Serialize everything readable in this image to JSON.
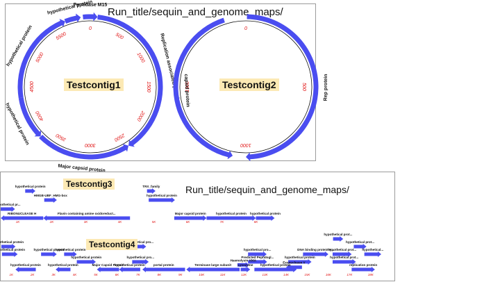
{
  "circular_panel": {
    "folder": "Run_title/sequin_and_genome_maps/",
    "gene_color": "#4a4df0",
    "tick_color": "#e01010",
    "contigs": [
      {
        "name": "Testcontig1",
        "length": 6000,
        "ticks": [
          "0",
          "500",
          "1000",
          "1500",
          "2000",
          "2500",
          "3000",
          "3500",
          "4000",
          "4500",
          "5000",
          "5500"
        ],
        "genes": [
          {
            "label": "Replication associated protein",
            "start": 100,
            "end": 2450,
            "strand": 1
          },
          {
            "label": "Major capsid protein",
            "start": 2450,
            "end": 3750,
            "strand": -1
          },
          {
            "label": "hypothetical protein",
            "start": 3750,
            "end": 4350,
            "strand": -1
          },
          {
            "label": "hypothetical protein",
            "start": 4350,
            "end": 5650,
            "strand": 1
          },
          {
            "label": "hypothetical protein",
            "start": 5650,
            "end": 5870,
            "strand": 1
          },
          {
            "label": "Peptidase M15",
            "start": 5900,
            "end": 6100,
            "strand": 1
          }
        ]
      },
      {
        "name": "Testcontig2",
        "length": 2000,
        "ticks": [
          "0",
          "500",
          "1000",
          "1500"
        ],
        "genes": [
          {
            "label": "Rep protein",
            "start": 5,
            "end": 1000,
            "strand": 1
          },
          {
            "label": "capsid protein",
            "start": 1900,
            "end": 1060,
            "strand": -1
          }
        ]
      }
    ]
  },
  "linear_panel": {
    "folder": "Run_title/sequin_and_genome_maps/",
    "contigs": [
      {
        "name": "Testcontig3",
        "length": 8000,
        "tick_labels": [
          "1K",
          "2K",
          "3K",
          "4K",
          "5K",
          "6K",
          "7K",
          "8K"
        ],
        "genes": [
          {
            "label": "hypothetical protein",
            "start": 720,
            "end": 1020,
            "strand": 1,
            "lane": 4
          },
          {
            "label": "HMGB-UBF_HMG-box",
            "start": 1280,
            "end": 1650,
            "strand": 1,
            "lane": 3
          },
          {
            "label": "TRX_family",
            "start": 4300,
            "end": 4550,
            "strand": 1,
            "lane": 4
          },
          {
            "label": "hypothetical protein",
            "start": 4350,
            "end": 5120,
            "strand": 1,
            "lane": 3
          },
          {
            "label": "hypothetical pr...",
            "start": 0,
            "end": 420,
            "strand": 1,
            "lane": 2
          },
          {
            "label": "RIBONUCLEASE H",
            "start": 1,
            "end": 1250,
            "strand": -1,
            "lane": 1
          },
          {
            "label": "Flavin containing amine oxidoreduct...",
            "start": 1250,
            "end": 3800,
            "strand": -1,
            "lane": 1
          },
          {
            "label": "Major capsid protein",
            "start": 5100,
            "end": 6050,
            "strand": 1,
            "lane": 1
          },
          {
            "label": "hypothetical protein",
            "start": 6050,
            "end": 7500,
            "strand": 1,
            "lane": 1
          },
          {
            "label": "hypothetical protein",
            "start": 7500,
            "end": 8050,
            "strand": 1,
            "lane": 1
          }
        ]
      },
      {
        "name": "Testcontig4",
        "length": 18000,
        "tick_labels": [
          "1K",
          "2K",
          "3K",
          "4K",
          "5K",
          "6K",
          "7K",
          "8K",
          "9K",
          "10K",
          "11K",
          "12K",
          "13K",
          "14K",
          "15K",
          "16K",
          "17K",
          "18K"
        ],
        "genes": [
          {
            "label": "hypothetical prot...",
            "start": 15720,
            "end": 16200,
            "strand": 1,
            "lane": 5
          },
          {
            "label": "hypothetical protein",
            "start": 30,
            "end": 700,
            "strand": 1,
            "lane": 4
          },
          {
            "label": "hypothetical pro...",
            "start": 6280,
            "end": 6880,
            "strand": 1,
            "lane": 4
          },
          {
            "label": "hypothetical prot...",
            "start": 16700,
            "end": 17300,
            "strand": 1,
            "lane": 4
          },
          {
            "label": "hypothetical protein",
            "start": 60,
            "end": 800,
            "strand": 1,
            "lane": 3
          },
          {
            "label": "hypothetical protein",
            "start": 1910,
            "end": 2650,
            "strand": 1,
            "lane": 3
          },
          {
            "label": "hypothetical protein",
            "start": 3000,
            "end": 3600,
            "strand": 1,
            "lane": 3
          },
          {
            "label": "hypothetical pro...",
            "start": 11700,
            "end": 12580,
            "strand": 1,
            "lane": 3
          },
          {
            "label": "DNA binding protein H...",
            "start": 14300,
            "end": 15500,
            "strand": 1,
            "lane": 3
          },
          {
            "label": "hypothetical prot...",
            "start": 15700,
            "end": 16600,
            "strand": 1,
            "lane": 3
          },
          {
            "label": "hypothetical...",
            "start": 17200,
            "end": 18000,
            "strand": 1,
            "lane": 3
          },
          {
            "label": "hypothetical protein",
            "start": 3600,
            "end": 4500,
            "strand": 1,
            "lane": 2
          },
          {
            "label": "hypothetical pro...",
            "start": 6220,
            "end": 7000,
            "strand": 1,
            "lane": 2
          },
          {
            "label": "Predicted Peptidogl...",
            "start": 11700,
            "end": 12600,
            "strand": 1,
            "lane": 2
          },
          {
            "label": "hypothetical protein",
            "start": 13600,
            "end": 14700,
            "strand": 1,
            "lane": 2
          },
          {
            "label": "hypothetical prot...",
            "start": 15700,
            "end": 16800,
            "strand": 1,
            "lane": 2
          },
          {
            "label": "Haemolysin XhlA",
            "start": 11200,
            "end": 11750,
            "strand": 1,
            "lane": 1.6
          },
          {
            "label": "Exonuclease V",
            "start": 13500,
            "end": 14250,
            "strand": -1,
            "lane": 1.3
          },
          {
            "label": "hypothetical protein",
            "start": 700,
            "end": 1660,
            "strand": -1,
            "lane": 1
          },
          {
            "label": "hypothetical protein",
            "start": 2600,
            "end": 3300,
            "strand": -1,
            "lane": 1
          },
          {
            "label": "Major Capsid Protein",
            "start": 4550,
            "end": 5600,
            "strand": -1,
            "lane": 1
          },
          {
            "label": "hypothetical protein",
            "start": 5600,
            "end": 6600,
            "strand": -1,
            "lane": 1
          },
          {
            "label": "portal protein",
            "start": 6700,
            "end": 8720,
            "strand": -1,
            "lane": 1
          },
          {
            "label": "Terminase large subunit",
            "start": 8780,
            "end": 11300,
            "strand": -1,
            "lane": 1
          },
          {
            "label": "Lysozyme",
            "start": 11350,
            "end": 11800,
            "strand": 1,
            "lane": 1
          },
          {
            "label": "hypothetical protein",
            "start": 12000,
            "end": 14000,
            "strand": 1,
            "lane": 1
          },
          {
            "label": "replication protein",
            "start": 16600,
            "end": 17700,
            "strand": 1,
            "lane": 1
          }
        ]
      }
    ]
  }
}
